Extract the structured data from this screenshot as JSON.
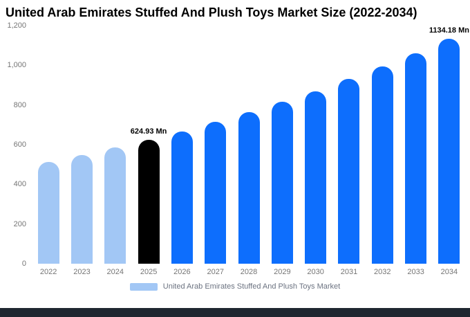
{
  "title": "United Arab Emirates Stuffed And Plush Toys Market Size (2022-2034)",
  "legend": {
    "label": "United Arab Emirates Stuffed And Plush Toys Market",
    "swatch_color": "#a2c7f5"
  },
  "colors": {
    "light_blue": "#a2c7f5",
    "blue": "#0d6efd",
    "black": "#000000",
    "footer_strip": "#1f2730",
    "axis_text": "#757575"
  },
  "chart_data": {
    "type": "bar",
    "title": "United Arab Emirates Stuffed And Plush Toys Market Size (2022-2034)",
    "xlabel": "",
    "ylabel": "",
    "unit": "Mn",
    "grid": false,
    "legend_position": "bottom",
    "categories": [
      "2022",
      "2023",
      "2024",
      "2025",
      "2026",
      "2027",
      "2028",
      "2029",
      "2030",
      "2031",
      "2032",
      "2033",
      "2034"
    ],
    "values": [
      512.4,
      547.5,
      585.0,
      624.93,
      667.7,
      713.5,
      762.4,
      814.6,
      870.4,
      930.0,
      993.7,
      1061.8,
      1134.18
    ],
    "point_colors": [
      "#a2c7f5",
      "#a2c7f5",
      "#a2c7f5",
      "#000000",
      "#0d6efd",
      "#0d6efd",
      "#0d6efd",
      "#0d6efd",
      "#0d6efd",
      "#0d6efd",
      "#0d6efd",
      "#0d6efd",
      "#0d6efd"
    ],
    "ylim": [
      0,
      1200
    ],
    "yticks": [
      {
        "value": 0,
        "label": "0"
      },
      {
        "value": 200,
        "label": "200"
      },
      {
        "value": 400,
        "label": "400"
      },
      {
        "value": 600,
        "label": "600"
      },
      {
        "value": 800,
        "label": "800"
      },
      {
        "value": 1000,
        "label": "1,000"
      },
      {
        "value": 1200,
        "label": "1,200"
      }
    ],
    "annotations": [
      {
        "index": 3,
        "text": "624.93 Mn"
      },
      {
        "index": 12,
        "text": "1134.18 Mn"
      }
    ]
  }
}
